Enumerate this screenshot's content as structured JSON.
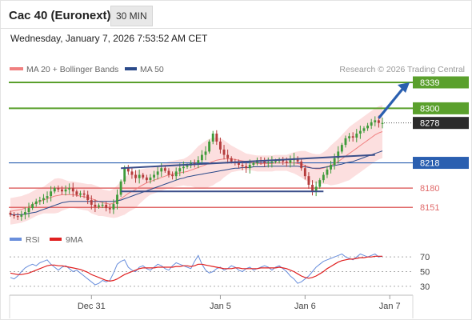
{
  "header": {
    "title": "Cac 40 (Euronext)",
    "timeframe": "30 MIN",
    "datetime": "Wednesday, January 7, 2026 7:53:52 AM CET"
  },
  "chart_data": [
    {
      "type": "candlestick",
      "legend": [
        {
          "name": "MA 20 + Bollinger Bands",
          "color": "#f08080"
        },
        {
          "name": "MA 50",
          "color": "#2b4a8a"
        }
      ],
      "credit": "Research © 2026 Trading Central",
      "ylim": [
        8120,
        8345
      ],
      "x_ticks": [
        {
          "label": "Dec 31",
          "index": 22
        },
        {
          "label": "Jan 5",
          "index": 57
        },
        {
          "label": "Jan 6",
          "index": 80
        },
        {
          "label": "Jan 7",
          "index": 103
        }
      ],
      "levels": [
        {
          "value": 8339,
          "label": "8339",
          "kind": "resistance",
          "color": "#5aa02c",
          "boxed": true
        },
        {
          "value": 8300,
          "label": "8300",
          "kind": "resistance",
          "color": "#5aa02c",
          "boxed": true
        },
        {
          "value": 8218,
          "label": "8218",
          "kind": "pivot",
          "color": "#2a5fb0",
          "boxed": true
        },
        {
          "value": 8180,
          "label": "8180",
          "kind": "support",
          "color": "#e06a6a",
          "boxed": false
        },
        {
          "value": 8151,
          "label": "8151",
          "kind": "support",
          "color": "#e06a6a",
          "boxed": false
        }
      ],
      "last_price": {
        "value": 8278,
        "label": "8278"
      },
      "close": [
        8140,
        8138,
        8137,
        8140,
        8144,
        8150,
        8156,
        8160,
        8162,
        8165,
        8168,
        8175,
        8180,
        8178,
        8175,
        8178,
        8180,
        8175,
        8170,
        8172,
        8170,
        8162,
        8155,
        8152,
        8154,
        8155,
        8150,
        8148,
        8156,
        8170,
        8190,
        8210,
        8205,
        8200,
        8195,
        8200,
        8196,
        8192,
        8196,
        8200,
        8205,
        8210,
        8206,
        8200,
        8198,
        8205,
        8210,
        8212,
        8214,
        8218,
        8216,
        8222,
        8230,
        8235,
        8250,
        8262,
        8250,
        8238,
        8230,
        8225,
        8220,
        8218,
        8215,
        8213,
        8210,
        8215,
        8218,
        8222,
        8220,
        8218,
        8219,
        8220,
        8221,
        8222,
        8220,
        8218,
        8222,
        8225,
        8220,
        8210,
        8198,
        8185,
        8176,
        8182,
        8192,
        8200,
        8208,
        8215,
        8225,
        8235,
        8245,
        8255,
        8258,
        8256,
        8262,
        8266,
        8270,
        8274,
        8279,
        8282,
        8278,
        8278
      ],
      "ma20": [
        8145,
        8146,
        8147,
        8148,
        8150,
        8152,
        8155,
        8158,
        8160,
        8162,
        8164,
        8166,
        8168,
        8169,
        8170,
        8170,
        8170,
        8170,
        8169,
        8168,
        8167,
        8166,
        8164,
        8162,
        8160,
        8158,
        8157,
        8156,
        8157,
        8160,
        8164,
        8168,
        8172,
        8175,
        8178,
        8182,
        8185,
        8188,
        8190,
        8192,
        8194,
        8196,
        8198,
        8200,
        8201,
        8202,
        8203,
        8204,
        8205,
        8207,
        8209,
        8211,
        8213,
        8215,
        8218,
        8220,
        8222,
        8223,
        8224,
        8224,
        8224,
        8223,
        8222,
        8221,
        8220,
        8219,
        8218,
        8217,
        8217,
        8217,
        8217,
        8217,
        8218,
        8218,
        8218,
        8218,
        8218,
        8218,
        8217,
        8216,
        8214,
        8212,
        8210,
        8209,
        8209,
        8210,
        8212,
        8214,
        8217,
        8220,
        8224,
        8228,
        8232,
        8236,
        8240,
        8244,
        8248,
        8252,
        8256,
        8260,
        8263,
        8265
      ],
      "ma50": [
        8140,
        8140,
        8140,
        8140,
        8141,
        8142,
        8143,
        8144,
        8146,
        8148,
        8150,
        8152,
        8154,
        8156,
        8158,
        8159,
        8160,
        8160,
        8160,
        8160,
        8160,
        8160,
        8160,
        8160,
        8160,
        8160,
        8160,
        8160,
        8160,
        8161,
        8162,
        8164,
        8166,
        8168,
        8170,
        8172,
        8174,
        8176,
        8178,
        8180,
        8182,
        8184,
        8186,
        8188,
        8190,
        8192,
        8194,
        8195,
        8197,
        8198,
        8199,
        8200,
        8201,
        8202,
        8203,
        8204,
        8205,
        8206,
        8207,
        8208,
        8209,
        8210,
        8210,
        8211,
        8211,
        8211,
        8212,
        8212,
        8212,
        8212,
        8213,
        8213,
        8213,
        8213,
        8213,
        8213,
        8213,
        8213,
        8213,
        8212,
        8212,
        8211,
        8210,
        8210,
        8210,
        8211,
        8212,
        8213,
        8214,
        8215,
        8216,
        8218,
        8219,
        8220,
        8222,
        8224,
        8226,
        8228,
        8230,
        8232,
        8234,
        8236
      ],
      "bollinger_width": [
        20,
        20,
        20,
        20,
        20,
        20,
        20,
        20,
        20,
        20,
        22,
        24,
        26,
        26,
        24,
        22,
        20,
        20,
        20,
        20,
        20,
        20,
        22,
        22,
        22,
        20,
        20,
        20,
        22,
        24,
        26,
        28,
        28,
        28,
        28,
        26,
        24,
        22,
        20,
        20,
        20,
        20,
        20,
        20,
        20,
        20,
        20,
        20,
        22,
        24,
        28,
        32,
        34,
        36,
        36,
        36,
        34,
        32,
        28,
        24,
        20,
        18,
        16,
        14,
        12,
        12,
        12,
        12,
        12,
        12,
        12,
        12,
        12,
        12,
        12,
        12,
        14,
        16,
        18,
        20,
        22,
        22,
        22,
        22,
        22,
        24,
        26,
        30,
        32,
        34,
        36,
        38,
        40,
        40,
        40,
        40,
        40,
        40,
        40,
        40,
        40,
        40
      ],
      "trendlines": [
        {
          "from": {
            "index": 30,
            "value": 8210
          },
          "to": {
            "index": 99,
            "value": 8230
          },
          "color": "#3b4f8a"
        },
        {
          "from": {
            "index": 30,
            "value": 8175
          },
          "to": {
            "index": 85,
            "value": 8175
          },
          "color": "#3b4f8a"
        }
      ],
      "projection_arrow": {
        "from": {
          "index": 100,
          "value": 8278
        },
        "to": {
          "value": 8339
        },
        "color": "#2a5fb0"
      }
    },
    {
      "type": "line",
      "legend": [
        {
          "name": "RSI",
          "color": "#6a8fdc"
        },
        {
          "name": "9MA",
          "color": "#e02020"
        }
      ],
      "ylim": [
        20,
        80
      ],
      "y_ticks": [
        70,
        50,
        30
      ],
      "reference_lines": [
        70,
        50,
        30
      ],
      "rsi": [
        42,
        40,
        44,
        50,
        55,
        58,
        60,
        58,
        62,
        64,
        66,
        60,
        56,
        52,
        56,
        58,
        54,
        50,
        52,
        48,
        44,
        40,
        36,
        32,
        34,
        38,
        36,
        38,
        48,
        60,
        64,
        66,
        56,
        52,
        50,
        56,
        58,
        54,
        52,
        56,
        60,
        58,
        54,
        52,
        58,
        62,
        60,
        58,
        56,
        54,
        64,
        72,
        60,
        52,
        48,
        50,
        54,
        56,
        52,
        54,
        58,
        56,
        52,
        50,
        54,
        56,
        52,
        54,
        56,
        58,
        56,
        52,
        56,
        58,
        54,
        50,
        44,
        40,
        34,
        36,
        40,
        44,
        50,
        56,
        60,
        64,
        66,
        68,
        70,
        72,
        74,
        70,
        68,
        66,
        70,
        74,
        72,
        70,
        72,
        74,
        70,
        71
      ],
      "ma9": [
        48,
        47,
        46,
        46,
        47,
        48,
        50,
        52,
        54,
        56,
        58,
        59,
        59,
        58,
        58,
        57,
        56,
        55,
        54,
        53,
        51,
        49,
        46,
        44,
        42,
        40,
        38,
        37,
        38,
        40,
        43,
        46,
        48,
        50,
        52,
        54,
        55,
        55,
        55,
        55,
        56,
        56,
        56,
        56,
        56,
        57,
        57,
        58,
        58,
        57,
        58,
        60,
        60,
        59,
        58,
        57,
        56,
        55,
        54,
        54,
        54,
        55,
        55,
        54,
        54,
        54,
        54,
        54,
        55,
        55,
        55,
        55,
        55,
        56,
        55,
        54,
        52,
        50,
        47,
        44,
        42,
        41,
        42,
        44,
        47,
        50,
        54,
        57,
        60,
        63,
        65,
        66,
        67,
        67,
        68,
        69,
        69,
        70,
        70,
        71,
        71,
        71
      ]
    }
  ]
}
